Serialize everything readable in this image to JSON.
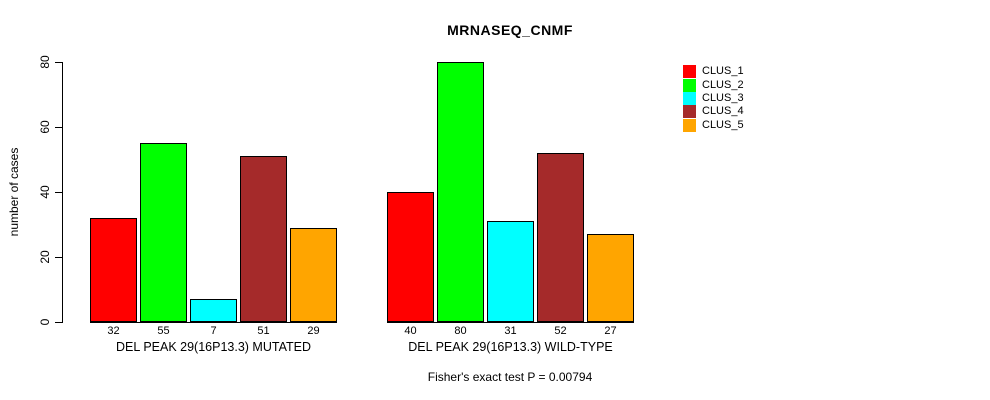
{
  "chart_data": {
    "type": "bar",
    "title": "MRNASEQ_CNMF",
    "ylabel": "number of cases",
    "xlabel": "",
    "ylim": [
      0,
      80
    ],
    "yticks": [
      0,
      20,
      40,
      60,
      80
    ],
    "grid": false,
    "legend_position": "right",
    "categories": [
      "DEL PEAK 29(16P13.3) MUTATED",
      "DEL PEAK 29(16P13.3) WILD-TYPE"
    ],
    "series": [
      {
        "name": "CLUS_1",
        "color": "#FF0000",
        "values": [
          32,
          40
        ]
      },
      {
        "name": "CLUS_2",
        "color": "#00FF00",
        "values": [
          55,
          80
        ]
      },
      {
        "name": "CLUS_3",
        "color": "#00FFFF",
        "values": [
          7,
          31
        ]
      },
      {
        "name": "CLUS_4",
        "color": "#A52A2A",
        "values": [
          51,
          52
        ]
      },
      {
        "name": "CLUS_5",
        "color": "#FFA500",
        "values": [
          29,
          27
        ]
      }
    ],
    "bar_value_labels_shown": true,
    "annotation": "Fisher's exact test P = 0.00794"
  }
}
